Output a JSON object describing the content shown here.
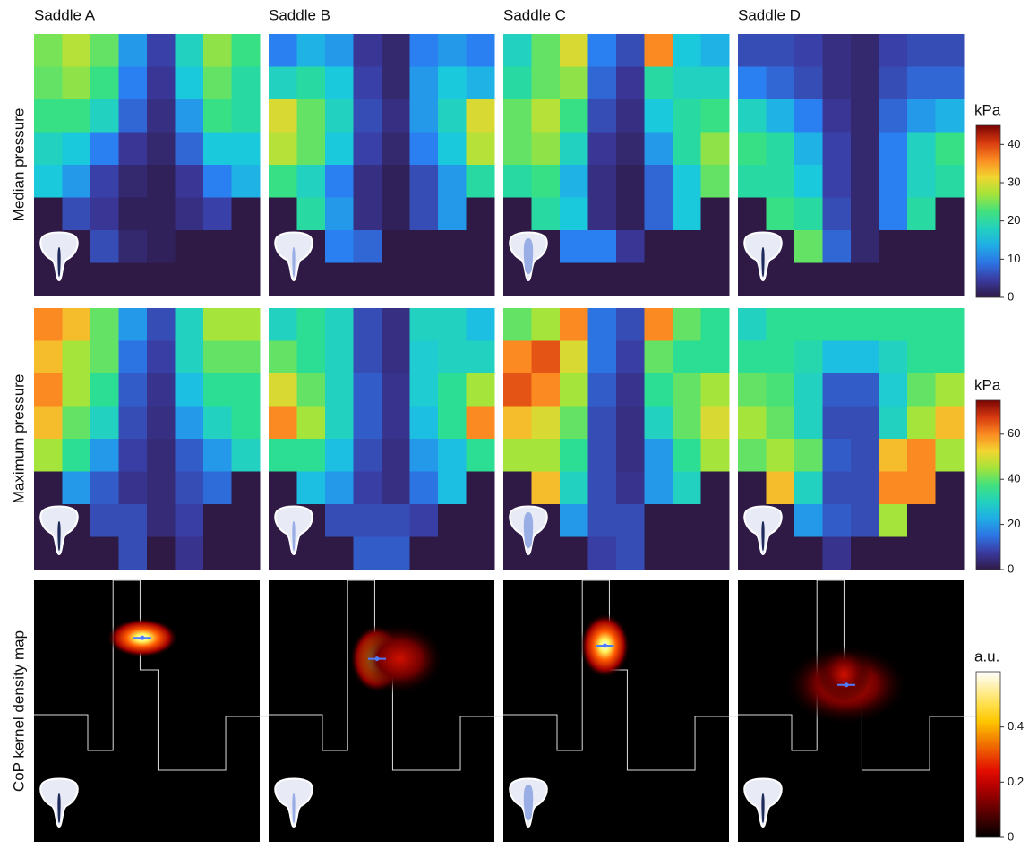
{
  "columns": [
    "Saddle A",
    "Saddle B",
    "Saddle C",
    "Saddle D"
  ],
  "chart_data": [
    {
      "type": "heatmap",
      "ylabel": "Median pressure",
      "colorbar_label": "kPa",
      "clim": [
        0,
        45
      ],
      "cticks": [
        0,
        10,
        20,
        30,
        40
      ],
      "maps": [
        [
          [
            25,
            28,
            24,
            12,
            5,
            18,
            26,
            22
          ],
          [
            24,
            26,
            22,
            10,
            4,
            16,
            24,
            20
          ],
          [
            22,
            22,
            18,
            8,
            3,
            12,
            22,
            20
          ],
          [
            18,
            16,
            10,
            4,
            2,
            8,
            16,
            16
          ],
          [
            16,
            12,
            5,
            2,
            1,
            4,
            10,
            14
          ],
          [
            0,
            6,
            4,
            1,
            1,
            3,
            5,
            0
          ],
          [
            0,
            0,
            6,
            2,
            1,
            0,
            0,
            0
          ],
          [
            0,
            0,
            0,
            0,
            0,
            0,
            0,
            0
          ]
        ],
        [
          [
            10,
            14,
            12,
            4,
            2,
            10,
            12,
            10
          ],
          [
            18,
            20,
            16,
            5,
            2,
            12,
            16,
            14
          ],
          [
            30,
            24,
            18,
            6,
            3,
            12,
            18,
            30
          ],
          [
            28,
            24,
            16,
            5,
            2,
            10,
            16,
            28
          ],
          [
            22,
            18,
            10,
            3,
            1,
            6,
            12,
            20
          ],
          [
            0,
            20,
            12,
            3,
            1,
            6,
            12,
            0
          ],
          [
            0,
            0,
            10,
            8,
            0,
            0,
            0,
            0
          ],
          [
            0,
            0,
            0,
            0,
            0,
            0,
            0,
            0
          ]
        ],
        [
          [
            18,
            24,
            30,
            10,
            6,
            36,
            16,
            14
          ],
          [
            20,
            24,
            26,
            8,
            4,
            20,
            18,
            18
          ],
          [
            24,
            28,
            22,
            6,
            3,
            16,
            20,
            22
          ],
          [
            24,
            26,
            18,
            4,
            2,
            12,
            20,
            26
          ],
          [
            20,
            22,
            14,
            3,
            1,
            8,
            16,
            24
          ],
          [
            0,
            20,
            16,
            3,
            1,
            8,
            16,
            0
          ],
          [
            0,
            0,
            10,
            10,
            4,
            0,
            0,
            0
          ],
          [
            0,
            0,
            0,
            0,
            0,
            0,
            0,
            0
          ]
        ],
        [
          [
            6,
            6,
            5,
            3,
            2,
            5,
            6,
            6
          ],
          [
            10,
            8,
            6,
            3,
            2,
            6,
            8,
            8
          ],
          [
            18,
            14,
            10,
            4,
            2,
            8,
            12,
            14
          ],
          [
            22,
            20,
            14,
            5,
            2,
            10,
            18,
            22
          ],
          [
            20,
            20,
            16,
            5,
            2,
            10,
            18,
            20
          ],
          [
            0,
            22,
            20,
            6,
            2,
            10,
            20,
            0
          ],
          [
            0,
            0,
            24,
            8,
            2,
            0,
            0,
            0
          ],
          [
            0,
            0,
            0,
            0,
            0,
            0,
            0,
            0
          ]
        ]
      ]
    },
    {
      "type": "heatmap",
      "ylabel": "Maximum pressure",
      "colorbar_label": "kPa",
      "clim": [
        0,
        75
      ],
      "cticks": [
        0,
        20,
        40,
        60
      ],
      "maps": [
        [
          [
            60,
            55,
            40,
            20,
            10,
            30,
            45,
            45
          ],
          [
            55,
            45,
            40,
            15,
            8,
            30,
            40,
            40
          ],
          [
            60,
            45,
            35,
            12,
            6,
            25,
            35,
            35
          ],
          [
            55,
            40,
            30,
            10,
            5,
            20,
            30,
            35
          ],
          [
            45,
            35,
            20,
            8,
            4,
            12,
            20,
            30
          ],
          [
            0,
            20,
            12,
            6,
            4,
            10,
            14,
            0
          ],
          [
            0,
            0,
            10,
            10,
            4,
            8,
            0,
            0
          ],
          [
            0,
            0,
            0,
            10,
            0,
            6,
            0,
            0
          ]
        ],
        [
          [
            30,
            35,
            30,
            10,
            5,
            30,
            30,
            25
          ],
          [
            40,
            35,
            30,
            10,
            5,
            28,
            30,
            30
          ],
          [
            50,
            40,
            30,
            12,
            6,
            28,
            35,
            45
          ],
          [
            60,
            45,
            30,
            12,
            6,
            25,
            35,
            60
          ],
          [
            35,
            35,
            25,
            10,
            5,
            20,
            25,
            35
          ],
          [
            0,
            25,
            20,
            8,
            5,
            15,
            25,
            0
          ],
          [
            0,
            0,
            10,
            10,
            10,
            8,
            0,
            0
          ],
          [
            0,
            0,
            0,
            12,
            12,
            0,
            0,
            0
          ]
        ],
        [
          [
            40,
            45,
            60,
            15,
            10,
            60,
            40,
            35
          ],
          [
            60,
            65,
            50,
            15,
            8,
            40,
            35,
            35
          ],
          [
            65,
            60,
            45,
            12,
            6,
            35,
            40,
            45
          ],
          [
            55,
            50,
            40,
            10,
            5,
            30,
            40,
            50
          ],
          [
            45,
            45,
            35,
            10,
            5,
            20,
            35,
            45
          ],
          [
            0,
            55,
            30,
            10,
            6,
            20,
            30,
            0
          ],
          [
            0,
            0,
            20,
            10,
            10,
            0,
            0,
            0
          ],
          [
            0,
            0,
            0,
            8,
            10,
            0,
            0,
            0
          ]
        ],
        [
          [
            30,
            35,
            35,
            35,
            35,
            35,
            35,
            35
          ],
          [
            35,
            35,
            32,
            25,
            25,
            30,
            35,
            35
          ],
          [
            40,
            38,
            30,
            12,
            12,
            28,
            40,
            45
          ],
          [
            45,
            40,
            30,
            10,
            10,
            30,
            45,
            55
          ],
          [
            40,
            45,
            40,
            12,
            10,
            55,
            60,
            45
          ],
          [
            0,
            55,
            30,
            10,
            10,
            60,
            60,
            0
          ],
          [
            0,
            0,
            20,
            12,
            10,
            45,
            0,
            0
          ],
          [
            0,
            0,
            0,
            6,
            0,
            0,
            0,
            0
          ]
        ]
      ]
    },
    {
      "type": "density",
      "ylabel": "CoP kernel density map",
      "colorbar_label": "a.u.",
      "clim": [
        0,
        0.6
      ],
      "cticks": [
        0,
        0.2,
        0.4
      ]
    }
  ]
}
